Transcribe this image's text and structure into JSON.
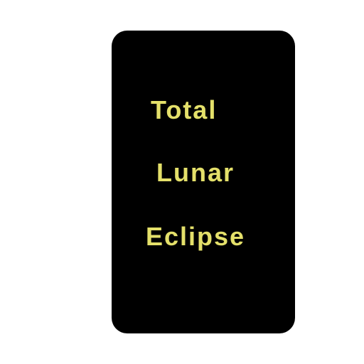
{
  "card": {
    "lines": [
      "Total",
      "Lunar",
      "Eclipse"
    ],
    "text_color": "#e4e06a",
    "background_color": "#000000"
  },
  "page_background": "#ffffff"
}
